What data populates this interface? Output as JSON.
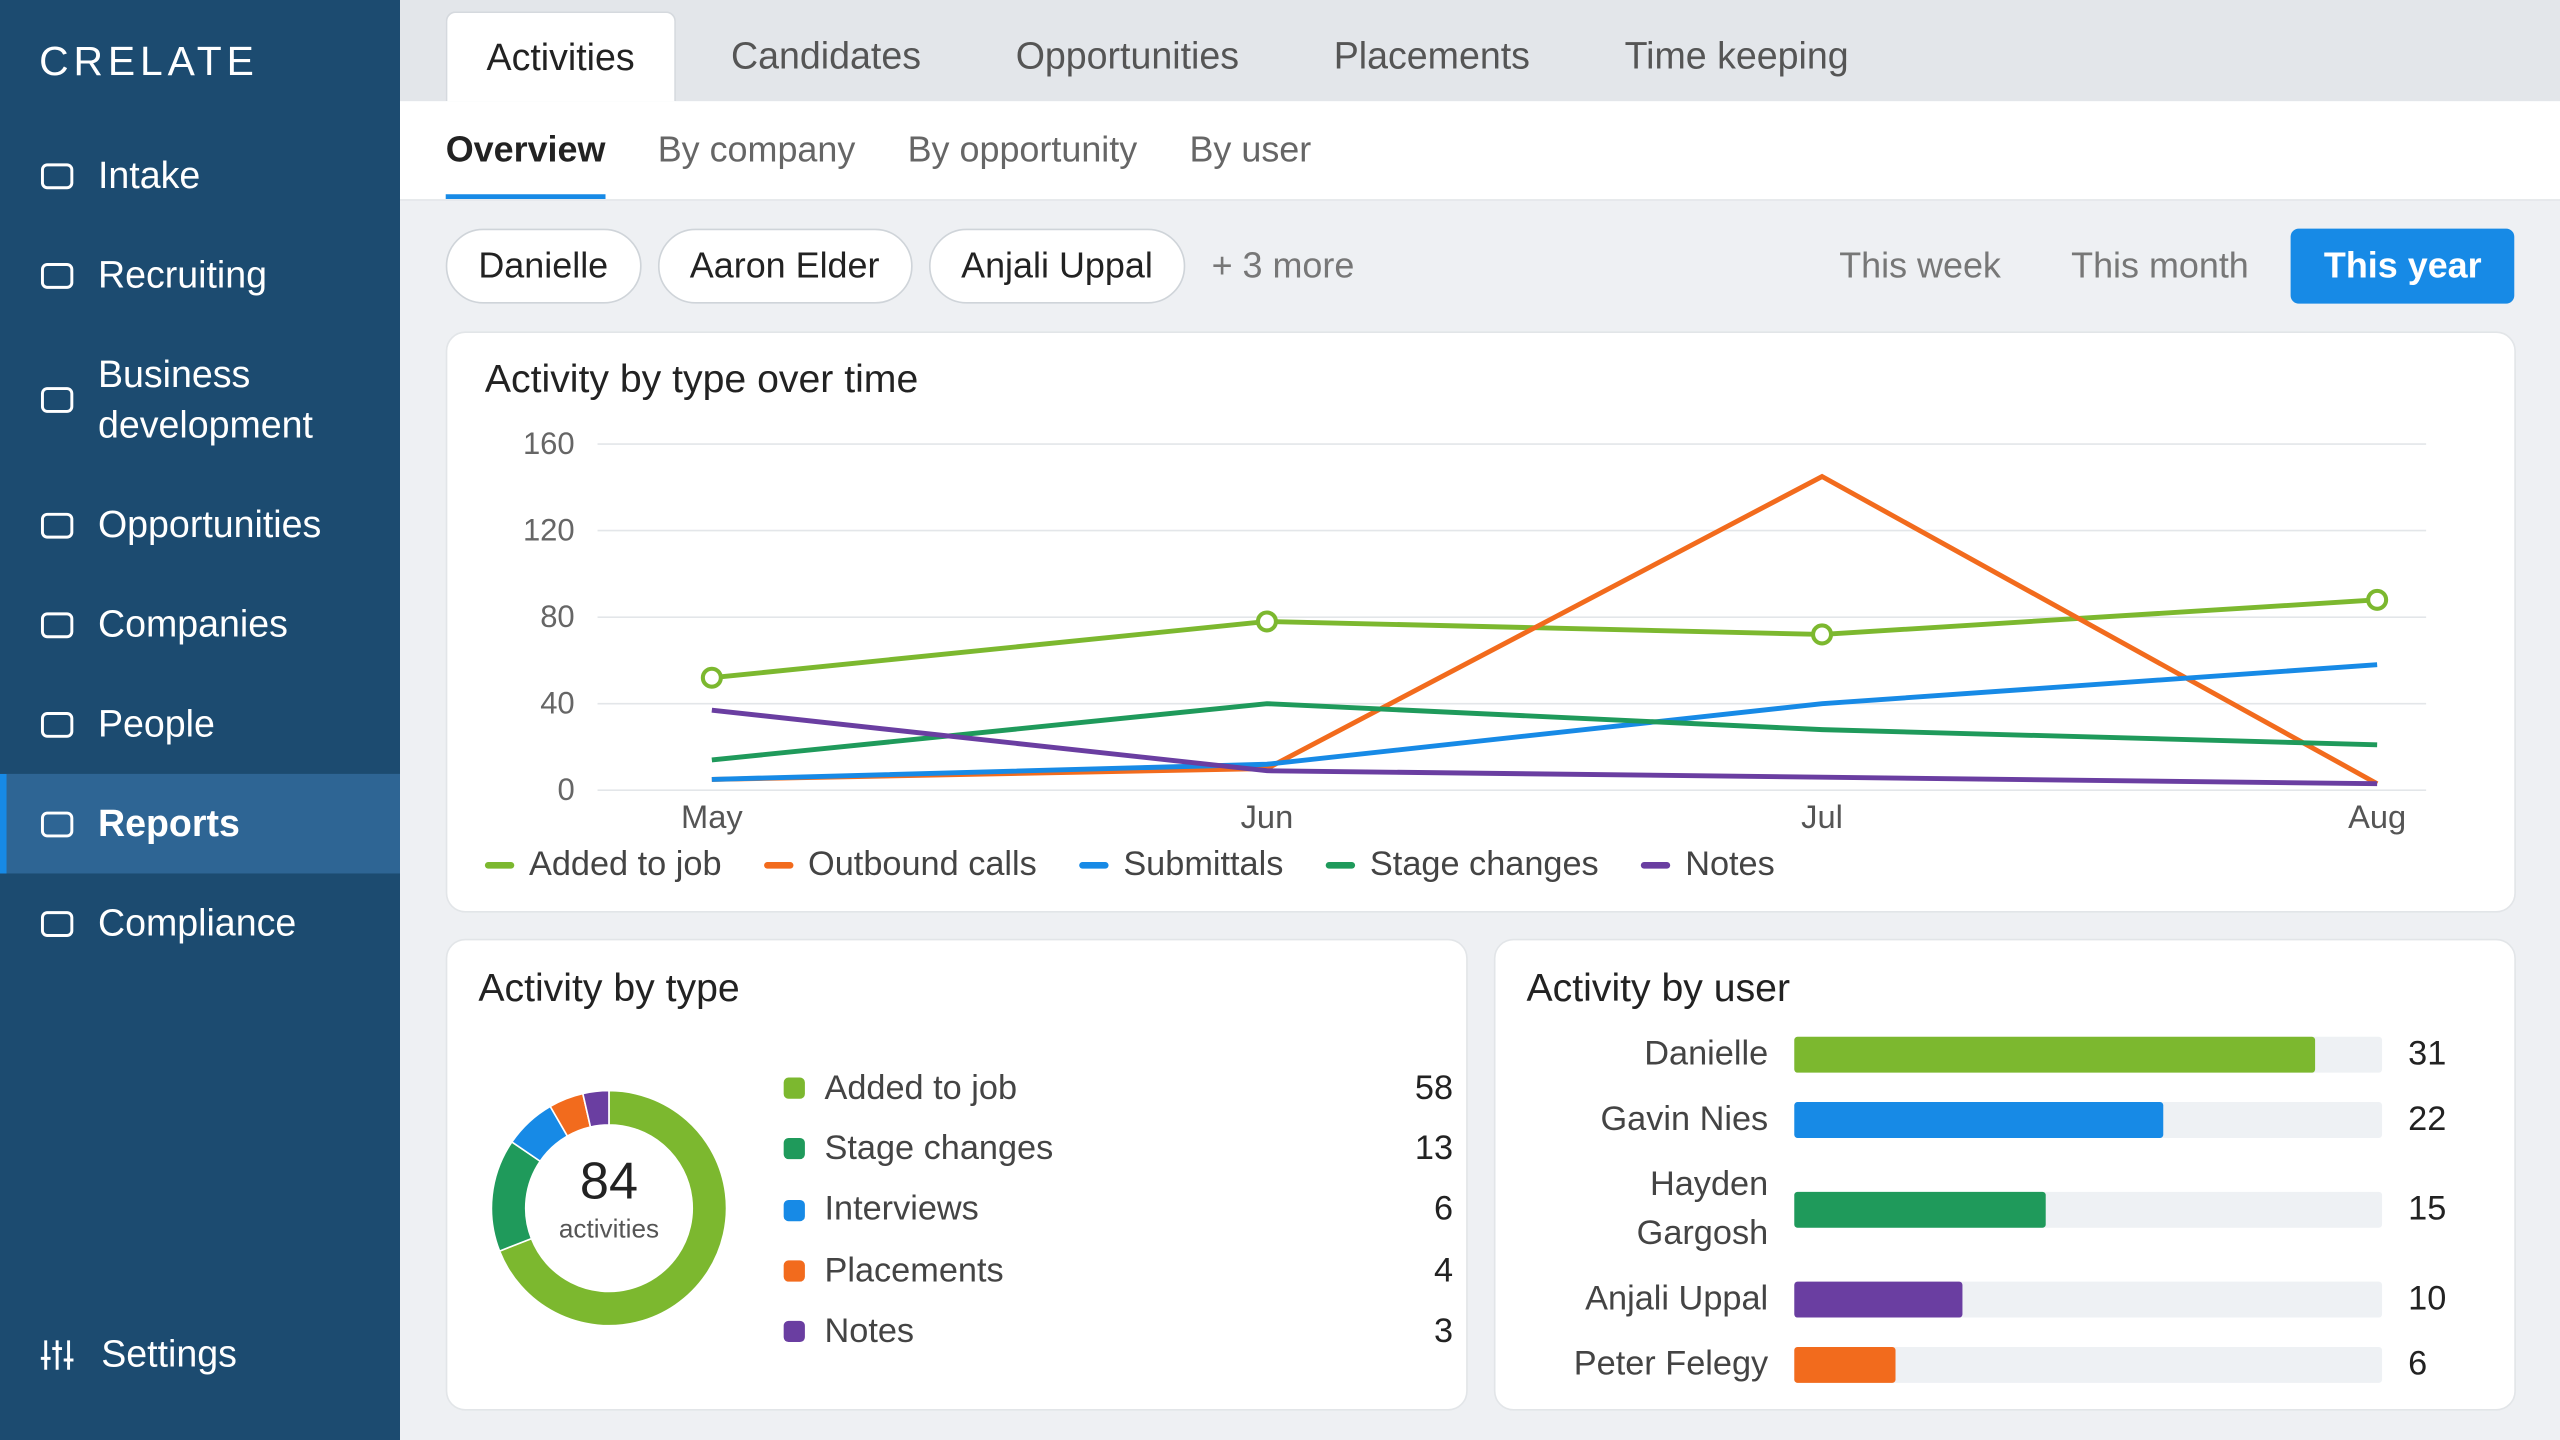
{
  "sidebar": {
    "brand": "CRELATE",
    "nav": [
      "Intake",
      "Recruiting",
      "Business development",
      "Opportunities",
      "Companies",
      "People",
      "Reports",
      "Compliance"
    ],
    "active": "Reports",
    "settings": "Settings"
  },
  "tabs": {
    "items": [
      "Activities",
      "Candidates",
      "Opportunities",
      "Placements",
      "Time keeping"
    ],
    "active": "Activities"
  },
  "subtabs": {
    "items": [
      "Overview",
      "By company",
      "By opportunity",
      "By user"
    ],
    "active": "Overview"
  },
  "filters": {
    "users": [
      "Danielle",
      "Aaron Elder",
      "Anjali Uppal"
    ],
    "more": "+ 3 more"
  },
  "ranges": {
    "items": [
      "This week",
      "This month",
      "This year"
    ],
    "active": "This year"
  },
  "chart_data": [
    {
      "type": "line",
      "title": "Activity by type over time",
      "categories": [
        "May",
        "Jun",
        "Jul",
        "Aug"
      ],
      "ylim": [
        0,
        160
      ],
      "yticks": [
        0,
        40,
        80,
        120,
        160
      ],
      "grid": true,
      "series": [
        {
          "name": "Added to job",
          "color": "#7cb82f",
          "values": [
            52,
            78,
            72,
            88
          ],
          "markers": true
        },
        {
          "name": "Outbound calls",
          "color": "#f26b1d",
          "values": [
            5,
            10,
            145,
            3
          ]
        },
        {
          "name": "Submittals",
          "color": "#178ae6",
          "values": [
            5,
            12,
            40,
            58
          ]
        },
        {
          "name": "Stage changes",
          "color": "#1f9a5b",
          "values": [
            14,
            40,
            28,
            21
          ]
        },
        {
          "name": "Notes",
          "color": "#6a3ea1",
          "values": [
            37,
            9,
            6,
            3
          ]
        }
      ]
    },
    {
      "type": "donut",
      "title": "Activity by type",
      "categories": [
        "Added to job",
        "Stage changes",
        "Interviews",
        "Placements",
        "Notes"
      ],
      "values": [
        58,
        13,
        6,
        4,
        3
      ],
      "colors": [
        "#7cb82f",
        "#1f9a5b",
        "#178ae6",
        "#f26b1d",
        "#6a3ea1"
      ],
      "total": 84,
      "total_label": "activities"
    },
    {
      "type": "hbar",
      "title": "Activity by user",
      "categories": [
        "Danielle",
        "Gavin Nies",
        "Hayden Gargosh",
        "Anjali Uppal",
        "Peter Felegy"
      ],
      "values": [
        31,
        22,
        15,
        10,
        6
      ],
      "colors": [
        "#7cb82f",
        "#178ae6",
        "#1f9a5b",
        "#6a3ea1",
        "#f26b1d"
      ],
      "xlim": [
        0,
        35
      ]
    }
  ]
}
